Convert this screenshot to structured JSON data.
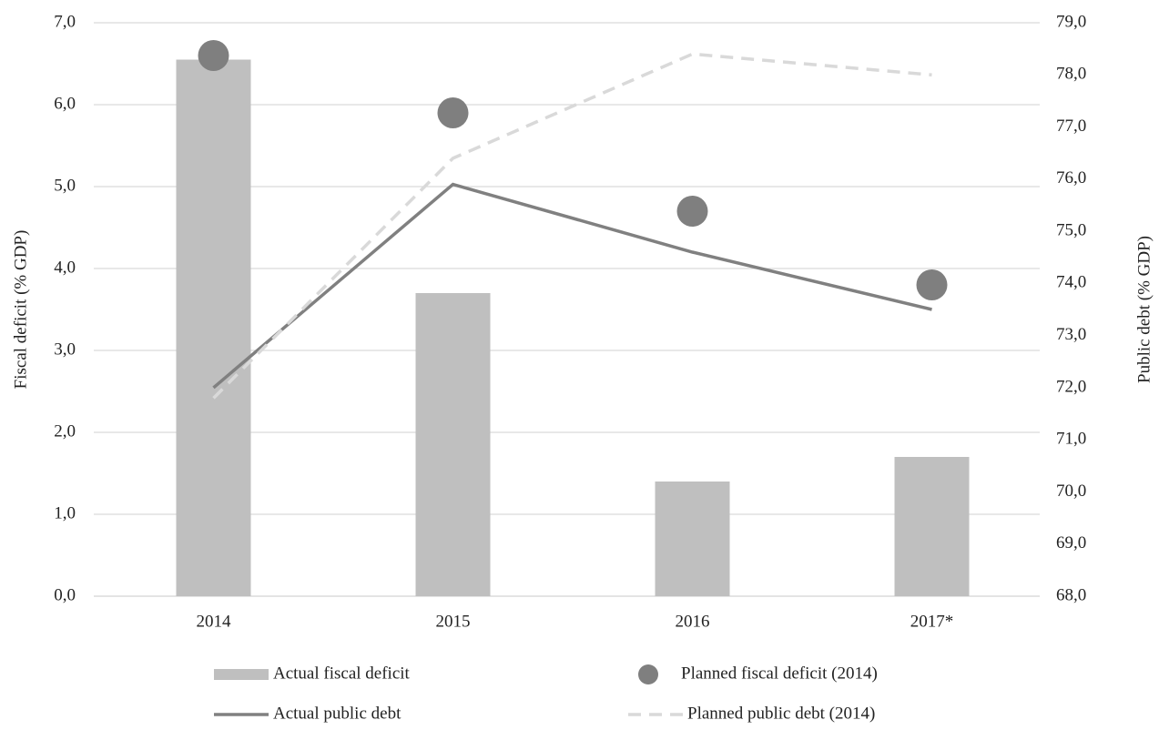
{
  "chart_data": {
    "type": "combo",
    "categories": [
      "2014",
      "2015",
      "2016",
      "2017*"
    ],
    "ylabel": "Fiscal deficit (% GDP)",
    "y2label": "Public debt  (% GDP)",
    "ylim": [
      0,
      7
    ],
    "yticks": [
      {
        "value": 0,
        "label": "0,0"
      },
      {
        "value": 1,
        "label": "1,0"
      },
      {
        "value": 2,
        "label": "2,0"
      },
      {
        "value": 3,
        "label": "3,0"
      },
      {
        "value": 4,
        "label": "4,0"
      },
      {
        "value": 5,
        "label": "5,0"
      },
      {
        "value": 6,
        "label": "6,0"
      },
      {
        "value": 7,
        "label": "7,0"
      }
    ],
    "y2lim": [
      68,
      79
    ],
    "y2ticks": [
      {
        "value": 68,
        "label": "68,0"
      },
      {
        "value": 69,
        "label": "69,0"
      },
      {
        "value": 70,
        "label": "70,0"
      },
      {
        "value": 71,
        "label": "71,0"
      },
      {
        "value": 72,
        "label": "72,0"
      },
      {
        "value": 73,
        "label": "73,0"
      },
      {
        "value": 74,
        "label": "74,0"
      },
      {
        "value": 75,
        "label": "75,0"
      },
      {
        "value": 76,
        "label": "76,0"
      },
      {
        "value": 77,
        "label": "77,0"
      },
      {
        "value": 78,
        "label": "78,0"
      },
      {
        "value": 79,
        "label": "79,0"
      }
    ],
    "grid": true,
    "series": [
      {
        "name": "Actual fiscal deficit",
        "type": "bar",
        "color": "#bfbfbf",
        "values": [
          6.55,
          3.7,
          1.4,
          1.7
        ]
      },
      {
        "name": "Planned fiscal deficit (2014)",
        "type": "scatter",
        "color": "#7f7f7f",
        "values": [
          6.6,
          5.9,
          4.7,
          3.8
        ]
      },
      {
        "name": "Actual public debt",
        "type": "line",
        "axis": "y2",
        "color": "#808080",
        "values": [
          72.0,
          75.9,
          74.6,
          73.5
        ]
      },
      {
        "name": "Planned public debt (2014)",
        "type": "line",
        "axis": "y2",
        "dashed": true,
        "color": "#d9d9d9",
        "values": [
          71.8,
          76.4,
          78.4,
          78.0
        ]
      }
    ]
  }
}
